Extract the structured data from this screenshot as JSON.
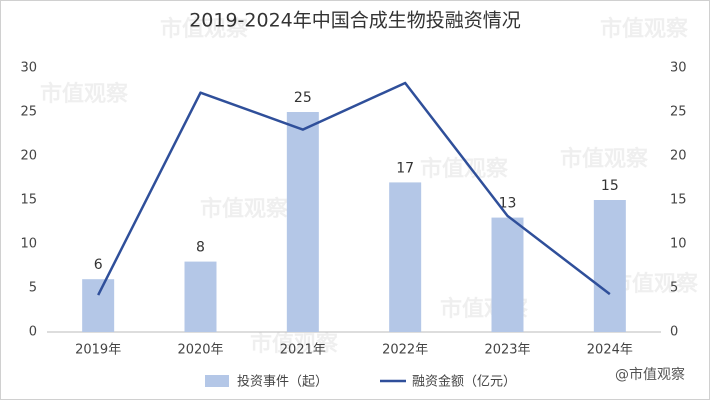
{
  "chart_data": {
    "type": "bar-line",
    "title": "2019-2024年中国合成生物投融资情况",
    "categories": [
      "2019年",
      "2020年",
      "2021年",
      "2022年",
      "2023年",
      "2024年"
    ],
    "series": [
      {
        "name": "投资事件（起）",
        "type": "bar",
        "color": "#b4c7e7",
        "values": [
          6,
          8,
          25,
          17,
          13,
          15
        ]
      },
      {
        "name": "融资金额（亿元）",
        "type": "line",
        "color": "#2f4f9a",
        "axis": "y2",
        "values": [
          4.2,
          27.2,
          23,
          28.3,
          13.2,
          4.3
        ]
      }
    ],
    "ylim": [
      0,
      30
    ],
    "yticks": [
      0,
      5,
      10,
      15,
      20,
      25,
      30
    ],
    "y2lim": [
      0,
      30
    ],
    "y2ticks": [
      0,
      5,
      10,
      15,
      20,
      25,
      30
    ],
    "grid": false,
    "legend": "bottom",
    "watermark": "市值观察",
    "credit": "@市值观察"
  }
}
